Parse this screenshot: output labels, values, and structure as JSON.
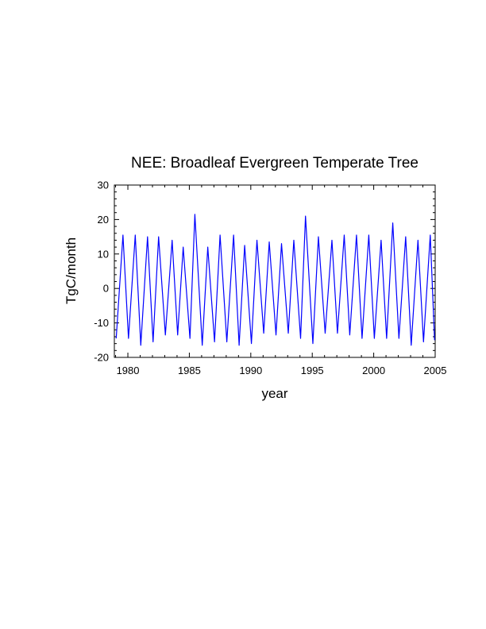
{
  "chart_data": {
    "type": "line",
    "title": "NEE: Broadleaf Evergreen Temperate Tree",
    "xlabel": "year",
    "ylabel": "TgC/month",
    "xlim": [
      1978.9,
      2005
    ],
    "ylim": [
      -20,
      30
    ],
    "xticks": [
      1980,
      1985,
      1990,
      1995,
      2000,
      2005
    ],
    "yticks": [
      -20,
      -10,
      0,
      10,
      20,
      30
    ],
    "grid": false,
    "legend": "none",
    "color": "#0000ff",
    "series": [
      {
        "peaks": [
          [
            1979.6,
            15.5
          ],
          [
            1980.6,
            15.5
          ],
          [
            1981.6,
            15.0
          ],
          [
            1982.5,
            15.0
          ],
          [
            1983.6,
            14.0
          ],
          [
            1984.5,
            12.0
          ],
          [
            1985.45,
            21.5
          ],
          [
            1986.5,
            12.0
          ],
          [
            1987.5,
            15.5
          ],
          [
            1988.6,
            15.5
          ],
          [
            1989.5,
            12.5
          ],
          [
            1990.5,
            14.0
          ],
          [
            1991.5,
            13.5
          ],
          [
            1992.5,
            13.0
          ],
          [
            1993.5,
            14.0
          ],
          [
            1994.45,
            21.0
          ],
          [
            1995.5,
            15.0
          ],
          [
            1996.6,
            14.0
          ],
          [
            1997.6,
            15.5
          ],
          [
            1998.6,
            15.5
          ],
          [
            1999.6,
            15.5
          ],
          [
            2000.6,
            14.0
          ],
          [
            2001.55,
            19.0
          ],
          [
            2002.6,
            15.0
          ],
          [
            2003.6,
            14.0
          ],
          [
            2004.6,
            15.5
          ]
        ],
        "troughs": [
          [
            1979.05,
            -14.5
          ],
          [
            1980.05,
            -14.5
          ],
          [
            1981.05,
            -16.5
          ],
          [
            1982.05,
            -15.5
          ],
          [
            1983.05,
            -13.5
          ],
          [
            1984.05,
            -13.5
          ],
          [
            1985.05,
            -14.5
          ],
          [
            1986.05,
            -16.5
          ],
          [
            1987.05,
            -15.5
          ],
          [
            1988.05,
            -15.5
          ],
          [
            1989.05,
            -16.5
          ],
          [
            1990.05,
            -16.0
          ],
          [
            1991.05,
            -13.0
          ],
          [
            1992.05,
            -13.5
          ],
          [
            1993.05,
            -13.0
          ],
          [
            1994.05,
            -14.5
          ],
          [
            1995.05,
            -16.0
          ],
          [
            1996.05,
            -13.0
          ],
          [
            1997.05,
            -13.0
          ],
          [
            1998.05,
            -13.5
          ],
          [
            1999.05,
            -14.5
          ],
          [
            2000.05,
            -14.5
          ],
          [
            2001.05,
            -14.5
          ],
          [
            2002.05,
            -14.5
          ],
          [
            2003.05,
            -16.5
          ],
          [
            2004.05,
            -15.5
          ],
          [
            2004.95,
            -15.0
          ]
        ]
      }
    ]
  }
}
